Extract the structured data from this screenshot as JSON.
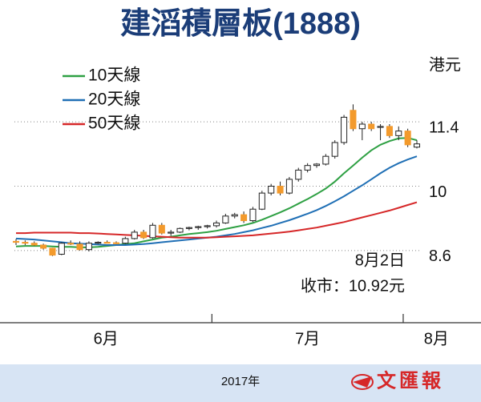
{
  "chart_data": {
    "type": "candlestick",
    "title": "建滔積層板(1888)",
    "y_unit_label": "港元",
    "categories": [
      "6月",
      "6月",
      "6月",
      "6月",
      "6月",
      "6月",
      "6月",
      "6月",
      "6月",
      "6月",
      "6月",
      "6月",
      "6月",
      "6月",
      "6月",
      "6月",
      "6月",
      "6月",
      "6月",
      "6月",
      "6月",
      "6月",
      "7月",
      "7月",
      "7月",
      "7月",
      "7月",
      "7月",
      "7月",
      "7月",
      "7月",
      "7月",
      "7月",
      "7月",
      "7月",
      "7月",
      "7月",
      "7月",
      "7月",
      "7月",
      "7月",
      "7月",
      "7月",
      "8月",
      "8月"
    ],
    "candles": {
      "open": [
        8.8,
        8.78,
        8.76,
        8.72,
        8.65,
        8.52,
        8.76,
        8.74,
        8.62,
        8.76,
        8.78,
        8.77,
        8.76,
        8.86,
        9.0,
        8.88,
        9.15,
        8.98,
        9.0,
        9.08,
        9.1,
        9.12,
        9.14,
        9.2,
        9.35,
        9.38,
        9.25,
        9.5,
        9.85,
        10.0,
        9.85,
        10.15,
        10.35,
        10.45,
        10.48,
        10.65,
        10.95,
        11.65,
        11.25,
        11.35,
        11.3,
        11.3,
        11.1,
        11.2,
        10.85
      ],
      "high": [
        8.85,
        8.82,
        8.8,
        8.75,
        8.66,
        8.78,
        8.82,
        8.8,
        8.8,
        8.8,
        8.82,
        8.8,
        8.9,
        9.05,
        9.05,
        9.2,
        9.2,
        9.05,
        9.1,
        9.12,
        9.14,
        9.16,
        9.25,
        9.4,
        9.42,
        9.45,
        9.55,
        9.9,
        10.05,
        10.1,
        10.2,
        10.4,
        10.5,
        10.5,
        10.7,
        11.0,
        11.55,
        11.78,
        11.4,
        11.4,
        11.35,
        11.35,
        11.3,
        11.25,
        11.0
      ],
      "low": [
        8.72,
        8.72,
        8.7,
        8.62,
        8.48,
        8.5,
        8.72,
        8.6,
        8.58,
        8.74,
        8.76,
        8.74,
        8.74,
        8.84,
        8.85,
        8.86,
        8.95,
        8.92,
        8.98,
        9.04,
        9.05,
        9.08,
        9.1,
        9.18,
        9.3,
        9.2,
        9.22,
        9.48,
        9.8,
        9.8,
        9.82,
        10.1,
        10.3,
        10.4,
        10.45,
        10.6,
        10.9,
        11.2,
        11.0,
        11.2,
        11.0,
        11.05,
        11.0,
        10.85,
        10.82
      ],
      "close": [
        8.78,
        8.76,
        8.72,
        8.65,
        8.5,
        8.76,
        8.74,
        8.62,
        8.76,
        8.78,
        8.77,
        8.76,
        8.86,
        9.0,
        8.88,
        9.15,
        8.98,
        9.0,
        9.08,
        9.1,
        9.12,
        9.14,
        9.2,
        9.35,
        9.38,
        9.25,
        9.5,
        9.85,
        10.0,
        9.85,
        10.15,
        10.35,
        10.45,
        10.48,
        10.65,
        10.95,
        11.5,
        11.25,
        11.35,
        11.25,
        11.3,
        11.1,
        11.2,
        10.9,
        10.92
      ],
      "up_color": "#ffffff",
      "down_color": "#f39a2c",
      "outline_color": "#222222"
    },
    "series": [
      {
        "name": "10天線",
        "color": "#2ea043",
        "values": [
          8.69,
          8.7,
          8.7,
          8.7,
          8.69,
          8.68,
          8.68,
          8.67,
          8.67,
          8.68,
          8.7,
          8.72,
          8.74,
          8.76,
          8.8,
          8.84,
          8.88,
          8.9,
          8.93,
          8.96,
          8.98,
          9.0,
          9.03,
          9.07,
          9.11,
          9.15,
          9.2,
          9.27,
          9.35,
          9.43,
          9.52,
          9.62,
          9.72,
          9.83,
          9.95,
          10.1,
          10.28,
          10.45,
          10.62,
          10.78,
          10.9,
          10.98,
          11.04,
          11.05,
          11.0
        ]
      },
      {
        "name": "20天線",
        "color": "#1f6fb5",
        "values": [
          8.86,
          8.85,
          8.84,
          8.82,
          8.8,
          8.78,
          8.76,
          8.75,
          8.74,
          8.73,
          8.72,
          8.72,
          8.72,
          8.73,
          8.74,
          8.76,
          8.78,
          8.8,
          8.82,
          8.84,
          8.86,
          8.88,
          8.9,
          8.93,
          8.96,
          9.0,
          9.04,
          9.09,
          9.14,
          9.2,
          9.26,
          9.33,
          9.4,
          9.48,
          9.57,
          9.67,
          9.78,
          9.9,
          10.02,
          10.15,
          10.28,
          10.4,
          10.5,
          10.58,
          10.65
        ]
      },
      {
        "name": "50天線",
        "color": "#d62728",
        "values": [
          8.98,
          8.98,
          8.99,
          8.99,
          8.99,
          8.99,
          8.99,
          8.98,
          8.98,
          8.97,
          8.96,
          8.95,
          8.94,
          8.93,
          8.92,
          8.91,
          8.9,
          8.89,
          8.88,
          8.88,
          8.88,
          8.88,
          8.89,
          8.9,
          8.91,
          8.92,
          8.93,
          8.95,
          8.97,
          8.99,
          9.01,
          9.04,
          9.07,
          9.1,
          9.14,
          9.18,
          9.22,
          9.27,
          9.32,
          9.37,
          9.42,
          9.47,
          9.53,
          9.59,
          9.65
        ]
      }
    ],
    "ylim": [
      7.03,
      12.97
    ],
    "yticks": [
      8.6,
      10,
      11.4
    ],
    "grid": true,
    "annotations": [
      "8月2日",
      "收市：10.92元"
    ],
    "footer": "2017年",
    "logo": "文匯報"
  }
}
